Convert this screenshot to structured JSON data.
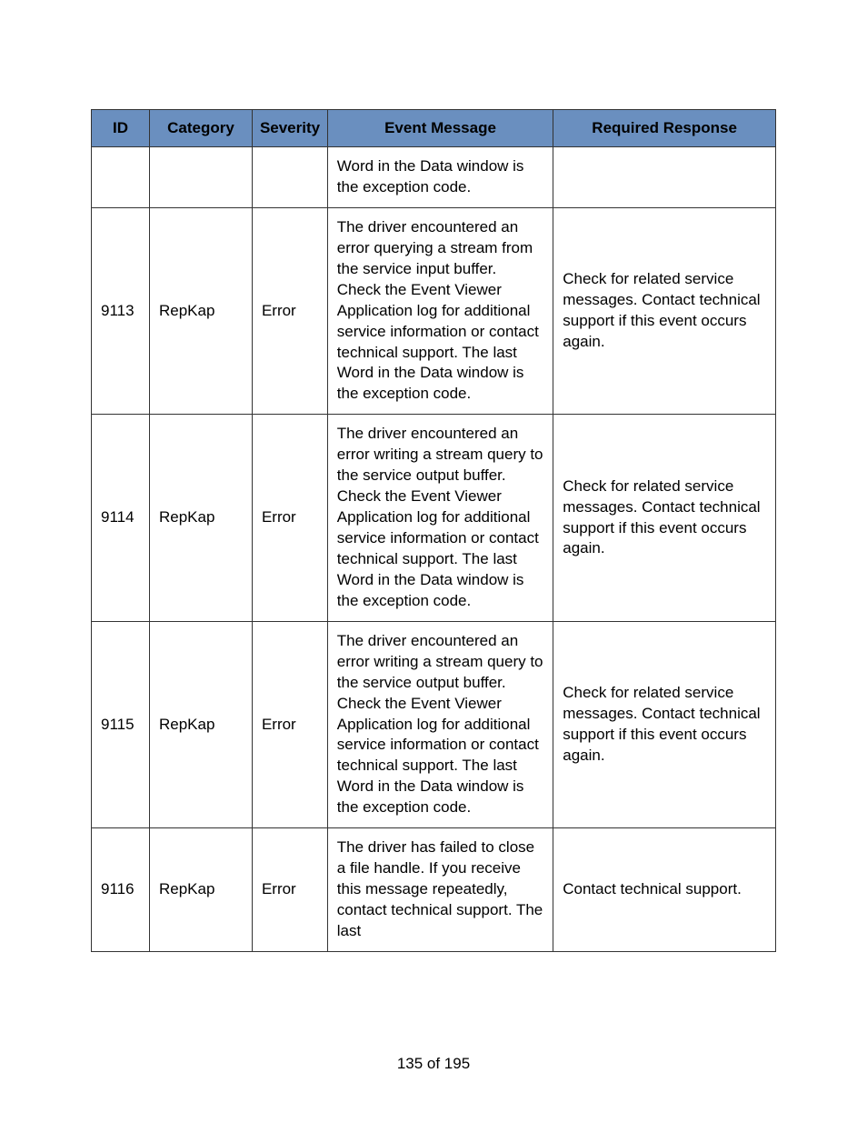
{
  "table": {
    "header_bg_color": "#6a8fbf",
    "border_color": "#333333",
    "font_family": "Arial",
    "header_fontsize": 17,
    "cell_fontsize": 17,
    "columns": [
      {
        "key": "id",
        "label": "ID",
        "width_pct": 8.5
      },
      {
        "key": "category",
        "label": "Category",
        "width_pct": 15
      },
      {
        "key": "severity",
        "label": "Severity",
        "width_pct": 11
      },
      {
        "key": "message",
        "label": "Event Message",
        "width_pct": 33
      },
      {
        "key": "response",
        "label": "Required Response",
        "width_pct": 32.5
      }
    ],
    "rows": [
      {
        "id": "",
        "category": "",
        "severity": "",
        "message": "Word in the Data window is the exception code.",
        "response": ""
      },
      {
        "id": "9113",
        "category": "RepKap",
        "severity": "Error",
        "message": "The driver encountered an error querying a stream from the service input buffer. Check the Event Viewer Application log for additional service information or contact technical support. The last Word in the Data window is the exception code.",
        "response": "Check for related service messages. Contact technical support if this event occurs again."
      },
      {
        "id": "9114",
        "category": "RepKap",
        "severity": "Error",
        "message": "The driver encountered an error writing a stream query to the service output buffer. Check the Event Viewer Application log for additional service information or contact technical support. The last Word in the Data window is the exception code.",
        "response": "Check for related service messages. Contact technical support if this event occurs again."
      },
      {
        "id": "9115",
        "category": "RepKap",
        "severity": "Error",
        "message": "The driver encountered an error writing a stream query to the service output buffer. Check the Event Viewer Application log for additional service information or contact technical support. The last Word in the Data window is the exception code.",
        "response": "Check for related service messages. Contact technical support if this event occurs again."
      },
      {
        "id": "9116",
        "category": "RepKap",
        "severity": "Error",
        "message": "The driver has failed to close a file handle. If you receive this message repeatedly, contact technical support. The last",
        "response": "Contact technical support."
      }
    ]
  },
  "page_number": "135 of 195"
}
